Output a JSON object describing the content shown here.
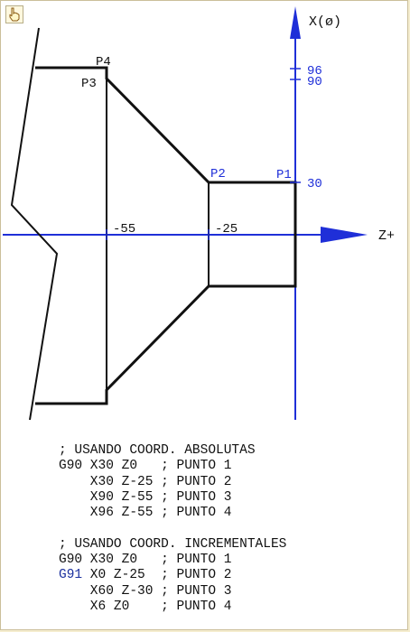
{
  "toolbar": {
    "cursor_icon": "hand-pointer-icon"
  },
  "diagram": {
    "axis_x_label": "X(ø)",
    "axis_z_label": "Z+",
    "points": [
      "P1",
      "P2",
      "P3",
      "P4"
    ],
    "tick_96": "96",
    "tick_90": "90",
    "tick_30": "30",
    "tick_m55": "-55",
    "tick_m25": "-25",
    "colors": {
      "axis": "#1f2fd8",
      "part": "#111111",
      "label": "#1f2fd8"
    }
  },
  "code": {
    "blocks": [
      {
        "comment": "; USANDO COORD. ABSOLUTAS",
        "lines": [
          {
            "code": "G90",
            "rest": " X30 Z0   ; PUNTO 1"
          },
          {
            "code": "",
            "rest": "    X30 Z-25 ; PUNTO 2"
          },
          {
            "code": "",
            "rest": "    X90 Z-55 ; PUNTO 3"
          },
          {
            "code": "",
            "rest": "    X96 Z-55 ; PUNTO 4"
          }
        ]
      },
      {
        "comment": "; USANDO COORD. INCREMENTALES",
        "lines": [
          {
            "code": "G90",
            "rest": " X30 Z0   ; PUNTO 1"
          },
          {
            "code": "G91",
            "rest": " X0 Z-25  ; PUNTO 2"
          },
          {
            "code": "",
            "rest": "    X60 Z-30 ; PUNTO 3"
          },
          {
            "code": "",
            "rest": "    X6 Z0    ; PUNTO 4"
          }
        ]
      }
    ]
  }
}
